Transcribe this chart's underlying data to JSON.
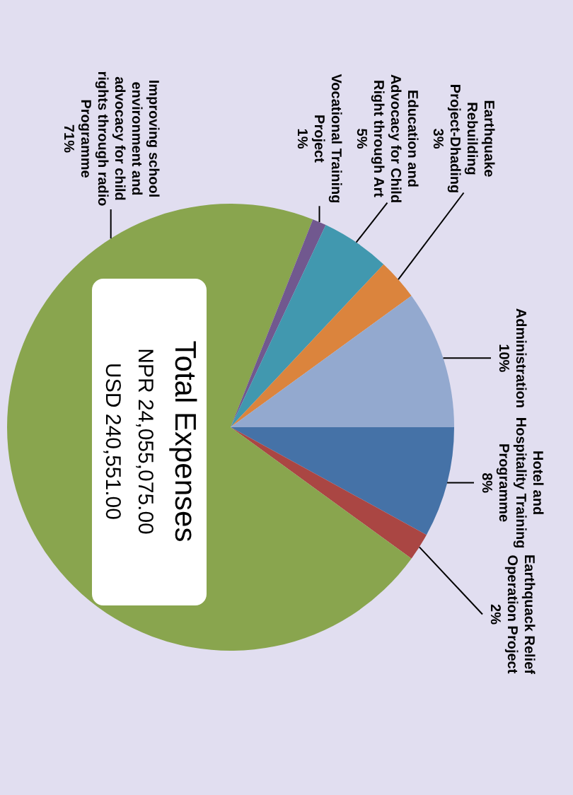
{
  "chart_data": {
    "type": "pie",
    "title": "Total Expenses",
    "annotations": [
      "NPR 24,055,075.00",
      "USD 240,551.00"
    ],
    "categories": [
      "Hotel and Hospitality Training Programme",
      "Earthquack Relief Operation Project",
      "Improving school environment and advocacy for child rights through radio Programme",
      "Vocational Training Project",
      "Education and Advocacy for Child Right through Art",
      "Earthquake Rebuilding Project-Dhading",
      "Administration"
    ],
    "values": [
      8,
      2,
      71,
      1,
      5,
      3,
      10
    ],
    "value_labels": [
      "8%",
      "2%",
      "71%",
      "1%",
      "5%",
      "3%",
      "10%"
    ],
    "colors": [
      "#4572a7",
      "#aa4643",
      "#89a54e",
      "#71588f",
      "#4198af",
      "#db843d",
      "#93a9cf"
    ]
  }
}
